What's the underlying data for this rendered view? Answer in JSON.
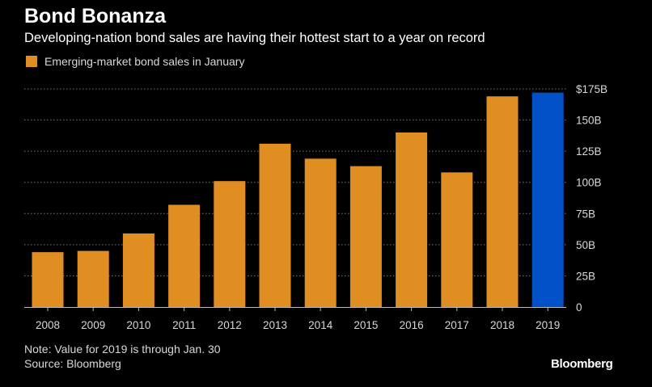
{
  "title": "Bond Bonanza",
  "subtitle": "Developing-nation bond sales are having their hottest start to a year on record",
  "legend": {
    "label": "Emerging-market bond sales in January",
    "color": "#e08e22"
  },
  "note": "Note: Value for 2019 is through Jan. 30",
  "source": "Source: Bloomberg",
  "logo": "Bloomberg",
  "chart_data": {
    "type": "bar",
    "categories": [
      "2008",
      "2009",
      "2010",
      "2011",
      "2012",
      "2013",
      "2014",
      "2015",
      "2016",
      "2017",
      "2018",
      "2019"
    ],
    "series": [
      {
        "name": "Emerging-market bond sales in January",
        "values": [
          44,
          45,
          59,
          82,
          101,
          131,
          119,
          113,
          140,
          108,
          169,
          172
        ]
      }
    ],
    "bar_colors": [
      "#e08e22",
      "#e08e22",
      "#e08e22",
      "#e08e22",
      "#e08e22",
      "#e08e22",
      "#e08e22",
      "#e08e22",
      "#e08e22",
      "#e08e22",
      "#e08e22",
      "#0050c8"
    ],
    "ylim": [
      0,
      175
    ],
    "yticks": [
      0,
      25,
      50,
      75,
      100,
      125,
      150,
      175
    ],
    "ytick_labels": [
      "0",
      "25B",
      "50B",
      "75B",
      "100B",
      "125B",
      "150B",
      "$175B"
    ],
    "y_axis_position": "right",
    "grid": true,
    "xlabel": "",
    "ylabel": ""
  }
}
